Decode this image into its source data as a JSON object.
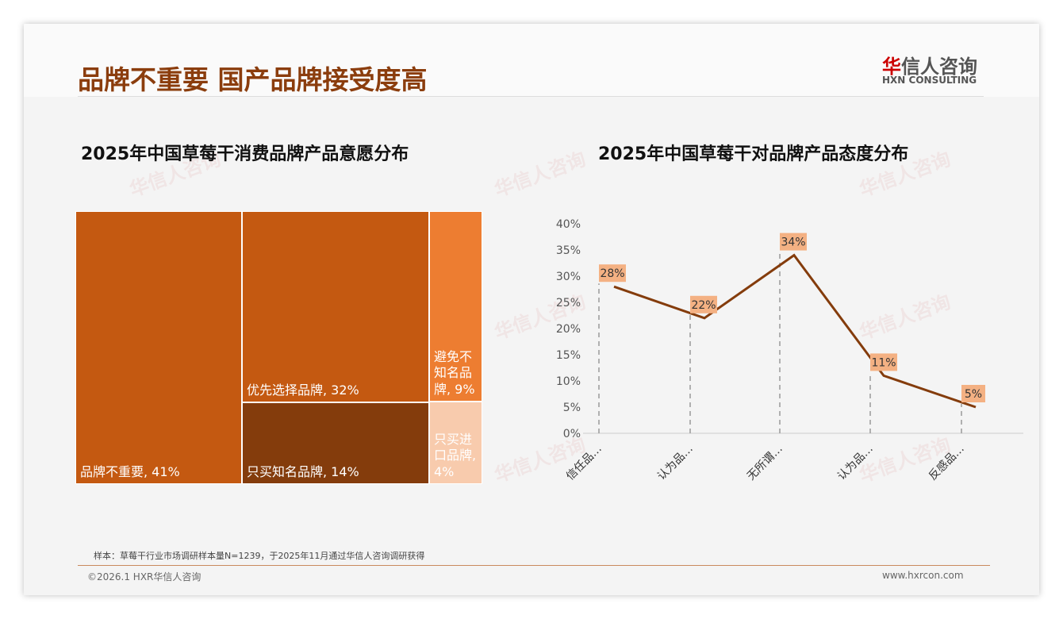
{
  "header": {
    "title": "品牌不重要 国产品牌接受度高",
    "logo_cn_red": "华",
    "logo_cn": "信人咨询",
    "logo_en": "HXN CONSULTING"
  },
  "chart_data": [
    {
      "type": "treemap",
      "title": "2025年中国草莓干消费品牌产品意愿分布",
      "items": [
        {
          "label": "品牌不重要, 41%",
          "value": 41,
          "color": "#c45911"
        },
        {
          "label": "优先选择品牌, 32%",
          "value": 32,
          "color": "#c45911"
        },
        {
          "label": "只买知名品牌, 14%",
          "value": 14,
          "color": "#843c0c"
        },
        {
          "label": "避免不知名品牌, 9%",
          "value": 9,
          "color": "#ed7d31"
        },
        {
          "label": "只买进口品牌, 4%",
          "value": 4,
          "color": "#f8cbad"
        }
      ]
    },
    {
      "type": "line",
      "title": "2025年中国草莓干对品牌产品态度分布",
      "categories": [
        "信任品…",
        "认为品…",
        "无所谓…",
        "认为品…",
        "反感品…"
      ],
      "values": [
        28,
        22,
        34,
        11,
        5
      ],
      "labels": [
        "28%",
        "22%",
        "34%",
        "11%",
        "5%"
      ],
      "yticks": [
        "0%",
        "5%",
        "10%",
        "15%",
        "20%",
        "25%",
        "30%",
        "35%",
        "40%"
      ],
      "ylim": [
        0,
        40
      ],
      "color": "#843c0c",
      "label_bg": "#f4b183"
    }
  ],
  "footer": {
    "sample": "样本：草莓干行业市场调研样本量N=1239，于2025年11月通过华信人咨询调研获得",
    "copyright": "©2026.1 HXR华信人咨询",
    "url": "www.hxrcon.com"
  }
}
